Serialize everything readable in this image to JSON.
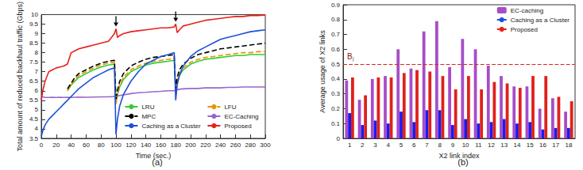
{
  "chart_data": [
    {
      "type": "line",
      "title": "(a)",
      "xlabel": "Time (sec.)",
      "ylabel": "Total amount of reduced backhaul traffic (Gbps)",
      "x": [
        0,
        2,
        5,
        10,
        15,
        20,
        25,
        30,
        35,
        40,
        45,
        50,
        60,
        70,
        80,
        90,
        98,
        100,
        102,
        105,
        110,
        120,
        130,
        140,
        150,
        160,
        170,
        178,
        180,
        182,
        185,
        190,
        200,
        210,
        220,
        230,
        240,
        250,
        260,
        270,
        280,
        290,
        300
      ],
      "series": [
        {
          "name": "LRU",
          "color": "#33cc33",
          "line_style": "solid",
          "values": [
            null,
            null,
            null,
            null,
            null,
            null,
            null,
            null,
            6.0,
            6.3,
            6.5,
            6.7,
            6.9,
            7.1,
            7.25,
            7.35,
            7.4,
            5.4,
            5.8,
            6.2,
            6.6,
            7.0,
            7.2,
            7.35,
            7.45,
            7.5,
            7.55,
            7.6,
            6.0,
            6.5,
            6.8,
            7.1,
            7.4,
            7.55,
            7.65,
            7.7,
            7.75,
            7.8,
            7.85,
            7.85,
            7.9,
            7.9,
            7.9
          ]
        },
        {
          "name": "LFU",
          "color": "#e69500",
          "line_style": "dashed",
          "values": [
            null,
            null,
            null,
            null,
            null,
            null,
            null,
            null,
            6.0,
            6.3,
            6.6,
            6.8,
            7.0,
            7.2,
            7.35,
            7.45,
            7.5,
            5.3,
            5.8,
            6.3,
            6.7,
            7.1,
            7.3,
            7.45,
            7.55,
            7.6,
            7.65,
            7.7,
            5.9,
            6.5,
            6.9,
            7.2,
            7.5,
            7.65,
            7.75,
            7.8,
            7.85,
            7.9,
            7.95,
            8.0,
            8.0,
            8.05,
            8.05
          ]
        },
        {
          "name": "MPC",
          "color": "#000000",
          "line_style": "dashed",
          "values": [
            null,
            null,
            null,
            null,
            null,
            null,
            null,
            null,
            6.1,
            6.4,
            6.7,
            6.9,
            7.1,
            7.3,
            7.45,
            7.55,
            7.6,
            5.5,
            6.0,
            6.5,
            6.9,
            7.3,
            7.5,
            7.65,
            7.75,
            7.8,
            7.85,
            7.9,
            6.1,
            6.7,
            7.1,
            7.4,
            7.7,
            7.9,
            8.0,
            8.1,
            8.2,
            8.25,
            8.3,
            8.35,
            8.4,
            8.45,
            8.5
          ]
        },
        {
          "name": "EC-Caching",
          "color": "#9966cc",
          "line_style": "solid",
          "values": [
            5.7,
            5.68,
            5.65,
            5.65,
            5.66,
            5.65,
            5.66,
            5.65,
            5.66,
            5.65,
            5.66,
            5.67,
            5.66,
            5.67,
            5.68,
            5.68,
            5.7,
            5.7,
            5.72,
            5.75,
            5.78,
            5.85,
            5.9,
            5.92,
            5.95,
            5.97,
            6.0,
            6.0,
            6.05,
            6.05,
            6.08,
            6.1,
            6.12,
            6.12,
            6.15,
            6.15,
            6.15,
            6.18,
            6.18,
            6.2,
            6.2,
            6.2,
            6.2
          ]
        },
        {
          "name": "Caching as a Cluster",
          "color": "#1f4fd8",
          "line_style": "solid",
          "values": [
            3.6,
            3.9,
            4.2,
            4.5,
            4.7,
            4.9,
            5.1,
            5.3,
            5.5,
            5.7,
            5.9,
            6.1,
            6.4,
            6.7,
            6.9,
            7.1,
            7.2,
            3.7,
            4.5,
            5.2,
            5.8,
            6.5,
            7.0,
            7.4,
            7.6,
            7.8,
            7.9,
            8.0,
            5.5,
            6.3,
            6.8,
            7.3,
            7.8,
            8.1,
            8.3,
            8.5,
            8.7,
            8.8,
            8.9,
            9.0,
            9.1,
            9.15,
            9.2
          ]
        },
        {
          "name": "Proposed",
          "color": "#e8201b",
          "line_style": "solid",
          "values": [
            5.5,
            6.0,
            6.5,
            7.0,
            7.1,
            7.2,
            7.25,
            7.3,
            7.4,
            8.0,
            8.1,
            8.2,
            8.3,
            8.4,
            8.5,
            8.6,
            9.0,
            9.25,
            8.8,
            8.9,
            9.0,
            9.1,
            9.15,
            9.2,
            9.25,
            9.3,
            9.3,
            9.35,
            9.5,
            9.05,
            9.2,
            9.4,
            9.5,
            9.6,
            9.7,
            9.75,
            9.8,
            9.85,
            9.9,
            9.9,
            9.95,
            9.95,
            9.98
          ]
        }
      ],
      "arrow_x": [
        100,
        180
      ],
      "xlim": [
        0,
        300
      ],
      "xticks": [
        0,
        20,
        40,
        60,
        80,
        100,
        120,
        140,
        160,
        180,
        200,
        220,
        240,
        260,
        280,
        300
      ],
      "ylim": [
        3.5,
        10
      ],
      "yticks": [
        3.5,
        4,
        4.5,
        5,
        5.5,
        6,
        6.5,
        7,
        7.5,
        8,
        8.5,
        9,
        9.5,
        10
      ],
      "grid": false,
      "legend": "lower right"
    },
    {
      "type": "bar",
      "title": "(b)",
      "xlabel": "X2 link index",
      "ylabel": "Average usage of X2 links",
      "categories": [
        "1",
        "2",
        "3",
        "4",
        "5",
        "6",
        "7",
        "8",
        "9",
        "10",
        "11",
        "12",
        "13",
        "14",
        "15",
        "16",
        "17",
        "18"
      ],
      "series": [
        {
          "name": "EC-caching",
          "color": "#a64dc8",
          "values": [
            0.39,
            0.26,
            0.4,
            0.42,
            0.6,
            0.47,
            0.72,
            0.79,
            0.48,
            0.67,
            0.6,
            0.49,
            0.42,
            0.35,
            0.35,
            0.2,
            0.27,
            0.18
          ]
        },
        {
          "name": "Caching as a Cluster",
          "color": "#1a1aee",
          "values": [
            0.17,
            0.09,
            0.12,
            0.1,
            0.18,
            0.11,
            0.19,
            0.19,
            0.09,
            0.13,
            0.1,
            0.11,
            0.13,
            0.1,
            0.11,
            0.06,
            0.07,
            0.07
          ]
        },
        {
          "name": "Proposed",
          "color": "#e0201b",
          "values": [
            0.41,
            0.29,
            0.41,
            0.41,
            0.44,
            0.46,
            0.45,
            0.42,
            0.33,
            0.42,
            0.33,
            0.38,
            0.37,
            0.34,
            0.42,
            0.42,
            0.28,
            0.25
          ]
        }
      ],
      "threshold": {
        "label": "Bⱼ",
        "value": 0.5,
        "color": "#e0201b"
      },
      "ylim": [
        0,
        0.9
      ],
      "yticks": [
        0,
        0.1,
        0.2,
        0.3,
        0.4,
        0.5,
        0.6,
        0.7,
        0.8,
        0.9
      ],
      "grid": false,
      "legend": "upper right"
    }
  ]
}
